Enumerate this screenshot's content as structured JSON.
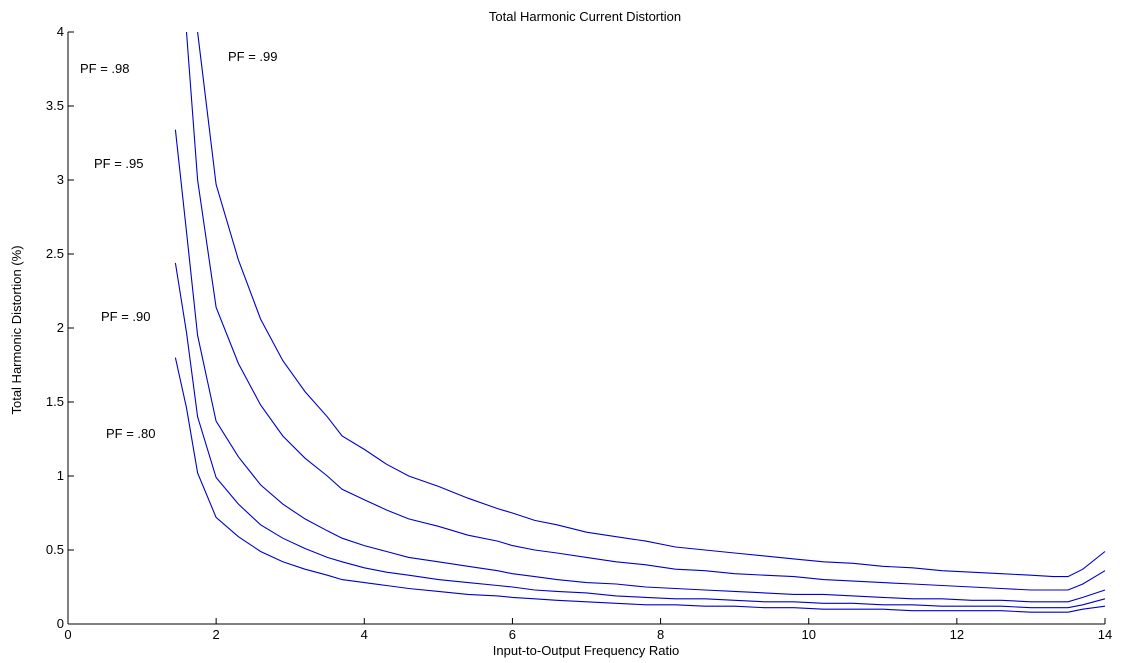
{
  "chart_data": {
    "type": "line",
    "title": "Total Harmonic Current Distortion",
    "xlabel": "Input-to-Output Frequency Ratio",
    "ylabel": "Total Harmonic Distortion (%)",
    "xlim": [
      0,
      14
    ],
    "ylim": [
      0,
      4
    ],
    "xticks": [
      "0",
      "2",
      "4",
      "6",
      "8",
      "10",
      "12",
      "14"
    ],
    "yticks": [
      "0",
      "0.5",
      "1",
      "1.5",
      "2",
      "2.5",
      "3",
      "3.5",
      "4"
    ],
    "grid": false,
    "legend": "none",
    "line_color": "#0000cc",
    "series": [
      {
        "name": "PF = .99",
        "x": [
          1.75,
          2.0,
          2.3,
          2.6,
          2.9,
          3.2,
          3.5,
          3.7,
          4.0,
          4.3,
          4.6,
          5.0,
          5.4,
          5.8,
          6.0,
          6.3,
          6.6,
          7.0,
          7.4,
          7.8,
          8.2,
          8.6,
          9.0,
          9.4,
          9.8,
          10.2,
          10.6,
          11.0,
          11.4,
          11.8,
          12.2,
          12.6,
          13.0,
          13.3,
          13.5,
          13.7,
          14.0
        ],
        "y": [
          4.0,
          2.97,
          2.46,
          2.06,
          1.78,
          1.57,
          1.4,
          1.27,
          1.18,
          1.08,
          1.0,
          0.93,
          0.85,
          0.78,
          0.75,
          0.7,
          0.67,
          0.62,
          0.59,
          0.56,
          0.52,
          0.5,
          0.48,
          0.46,
          0.44,
          0.42,
          0.41,
          0.39,
          0.38,
          0.36,
          0.35,
          0.34,
          0.33,
          0.32,
          0.32,
          0.37,
          0.49
        ]
      },
      {
        "name": "PF = .98",
        "x": [
          1.6,
          1.75,
          2.0,
          2.3,
          2.6,
          2.9,
          3.2,
          3.5,
          3.7,
          4.0,
          4.3,
          4.6,
          5.0,
          5.4,
          5.8,
          6.0,
          6.3,
          6.6,
          7.0,
          7.4,
          7.8,
          8.2,
          8.6,
          9.0,
          9.4,
          9.8,
          10.2,
          10.6,
          11.0,
          11.4,
          11.8,
          12.2,
          12.6,
          13.0,
          13.3,
          13.5,
          13.7,
          14.0
        ],
        "y": [
          4.0,
          3.0,
          2.14,
          1.76,
          1.48,
          1.27,
          1.12,
          1.0,
          0.91,
          0.84,
          0.77,
          0.71,
          0.66,
          0.6,
          0.56,
          0.53,
          0.5,
          0.48,
          0.45,
          0.42,
          0.4,
          0.37,
          0.36,
          0.34,
          0.33,
          0.32,
          0.3,
          0.29,
          0.28,
          0.27,
          0.26,
          0.25,
          0.24,
          0.23,
          0.23,
          0.23,
          0.27,
          0.36
        ]
      },
      {
        "name": "PF = .95",
        "x": [
          1.45,
          1.6,
          1.75,
          2.0,
          2.3,
          2.6,
          2.9,
          3.2,
          3.5,
          3.7,
          4.0,
          4.3,
          4.6,
          5.0,
          5.4,
          5.8,
          6.0,
          6.3,
          6.6,
          7.0,
          7.4,
          7.8,
          8.2,
          8.6,
          9.0,
          9.4,
          9.8,
          10.2,
          10.6,
          11.0,
          11.4,
          11.8,
          12.2,
          12.6,
          13.0,
          13.3,
          13.5,
          13.7,
          14.0
        ],
        "y": [
          3.34,
          2.65,
          1.95,
          1.37,
          1.13,
          0.94,
          0.81,
          0.71,
          0.63,
          0.58,
          0.53,
          0.49,
          0.45,
          0.42,
          0.39,
          0.36,
          0.34,
          0.32,
          0.3,
          0.28,
          0.27,
          0.25,
          0.24,
          0.23,
          0.22,
          0.21,
          0.2,
          0.2,
          0.19,
          0.18,
          0.17,
          0.17,
          0.16,
          0.16,
          0.15,
          0.15,
          0.15,
          0.18,
          0.23
        ]
      },
      {
        "name": "PF = .90",
        "x": [
          1.45,
          1.6,
          1.75,
          2.0,
          2.3,
          2.6,
          2.9,
          3.2,
          3.5,
          3.7,
          4.0,
          4.3,
          4.6,
          5.0,
          5.4,
          5.8,
          6.0,
          6.3,
          6.6,
          7.0,
          7.4,
          7.8,
          8.2,
          8.6,
          9.0,
          9.4,
          9.8,
          10.2,
          10.6,
          11.0,
          11.4,
          11.8,
          12.2,
          12.6,
          13.0,
          13.3,
          13.5,
          13.7,
          14.0
        ],
        "y": [
          2.44,
          1.97,
          1.4,
          0.99,
          0.81,
          0.67,
          0.58,
          0.51,
          0.45,
          0.42,
          0.38,
          0.35,
          0.33,
          0.3,
          0.28,
          0.26,
          0.25,
          0.23,
          0.22,
          0.21,
          0.19,
          0.18,
          0.17,
          0.17,
          0.16,
          0.15,
          0.15,
          0.14,
          0.14,
          0.13,
          0.13,
          0.12,
          0.12,
          0.12,
          0.11,
          0.11,
          0.11,
          0.13,
          0.17
        ]
      },
      {
        "name": "PF = .80",
        "x": [
          1.45,
          1.6,
          1.75,
          2.0,
          2.3,
          2.6,
          2.9,
          3.2,
          3.5,
          3.7,
          4.0,
          4.3,
          4.6,
          5.0,
          5.4,
          5.8,
          6.0,
          6.3,
          6.6,
          7.0,
          7.4,
          7.8,
          8.2,
          8.6,
          9.0,
          9.4,
          9.8,
          10.2,
          10.6,
          11.0,
          11.4,
          11.8,
          12.2,
          12.6,
          13.0,
          13.3,
          13.5,
          13.7,
          14.0
        ],
        "y": [
          1.8,
          1.46,
          1.02,
          0.72,
          0.59,
          0.49,
          0.42,
          0.37,
          0.33,
          0.3,
          0.28,
          0.26,
          0.24,
          0.22,
          0.2,
          0.19,
          0.18,
          0.17,
          0.16,
          0.15,
          0.14,
          0.13,
          0.13,
          0.12,
          0.12,
          0.11,
          0.11,
          0.1,
          0.1,
          0.1,
          0.09,
          0.09,
          0.09,
          0.09,
          0.08,
          0.08,
          0.08,
          0.1,
          0.12
        ]
      }
    ]
  }
}
